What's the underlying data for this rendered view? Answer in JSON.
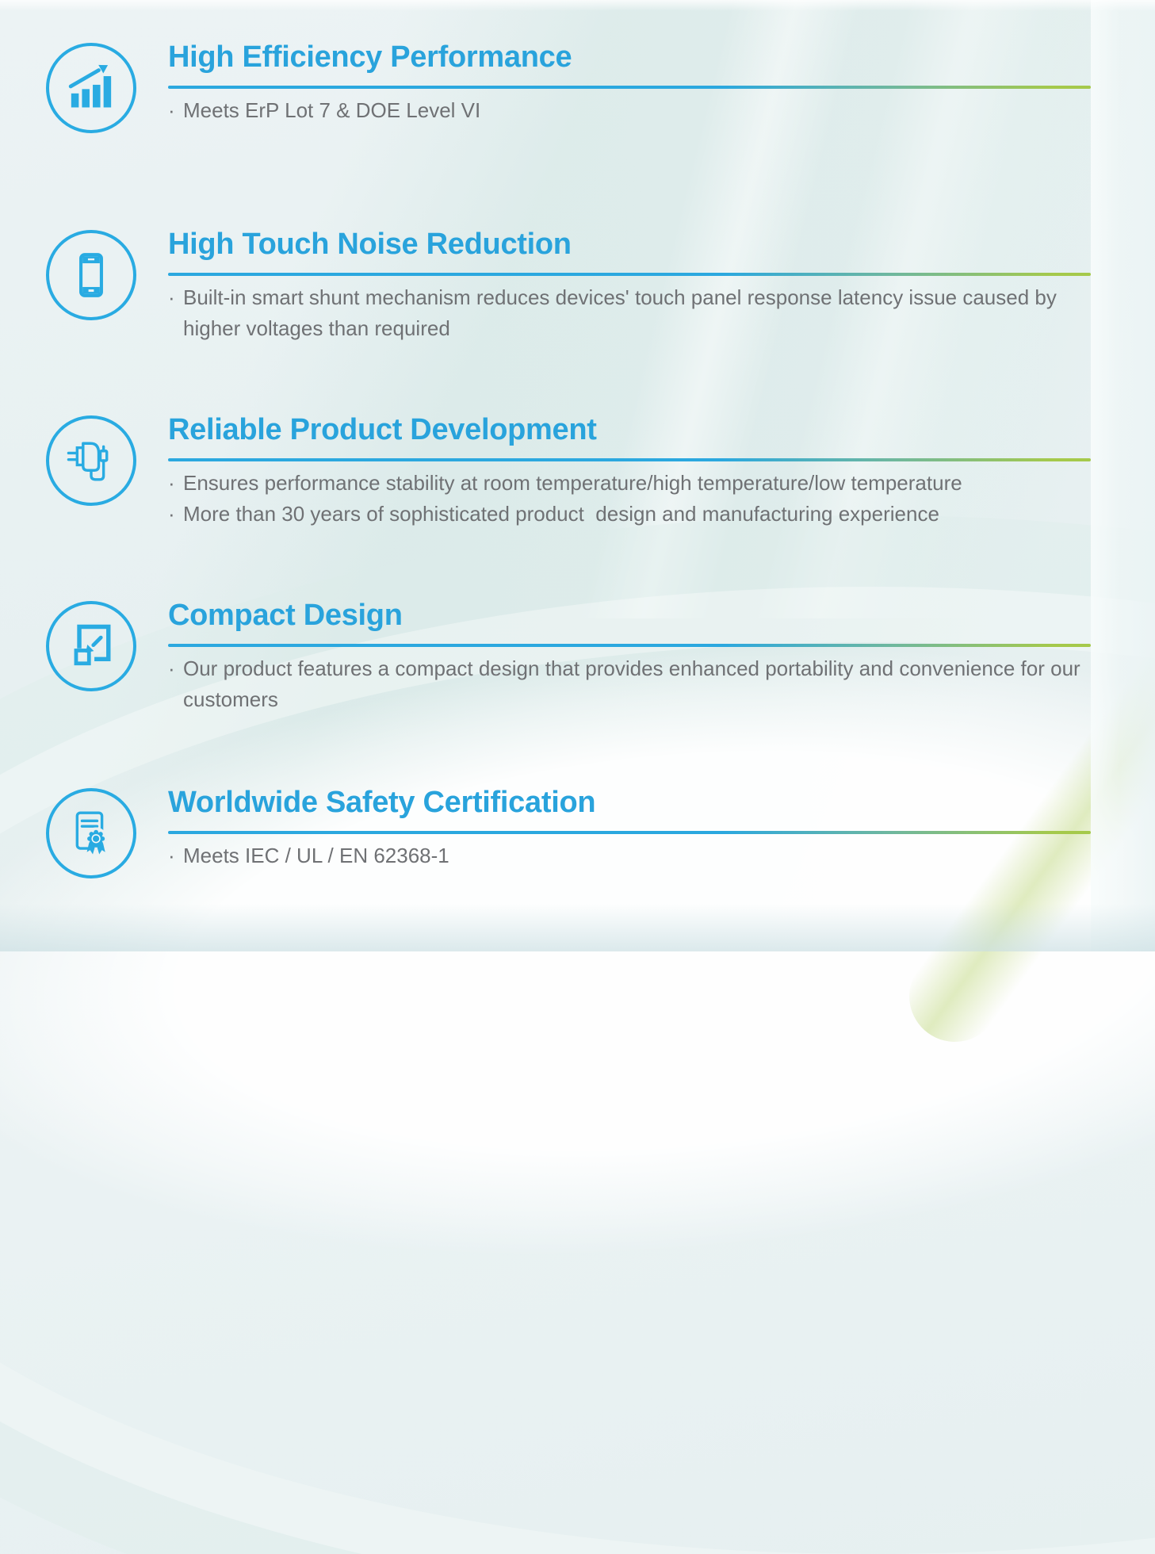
{
  "bullet_marker": "·",
  "colors": {
    "heading_blue": "#29a3dc",
    "icon_blue": "#29abe2",
    "divider_gradient_start_blue": "#2ba8df",
    "divider_gradient_end_green": "#a5c94b",
    "body_text_gray": "#6f7174",
    "background_light": "#e9f1f2"
  },
  "features": [
    {
      "icon": "bar-chart-growth-icon",
      "title": "High Efficiency Performance",
      "bullets": [
        "Meets ErP Lot 7 & DOE Level VI"
      ]
    },
    {
      "icon": "smartphone-icon",
      "title": "High Touch Noise Reduction",
      "bullets": [
        "Built-in smart shunt mechanism reduces devices' touch panel response latency issue caused by higher voltages than required"
      ]
    },
    {
      "icon": "power-adapter-icon",
      "title": "Reliable Product Development",
      "bullets": [
        "Ensures performance stability at room temperature/high temperature/low temperature",
        "More than 30 years of sophisticated product  design and manufacturing experience"
      ]
    },
    {
      "icon": "compact-resize-icon",
      "title": "Compact Design",
      "bullets": [
        "Our product features a compact design that provides enhanced portability and convenience for our customers"
      ]
    },
    {
      "icon": "certificate-ribbon-icon",
      "title": "Worldwide Safety Certification",
      "bullets": [
        "Meets IEC / UL / EN 62368-1"
      ]
    }
  ]
}
